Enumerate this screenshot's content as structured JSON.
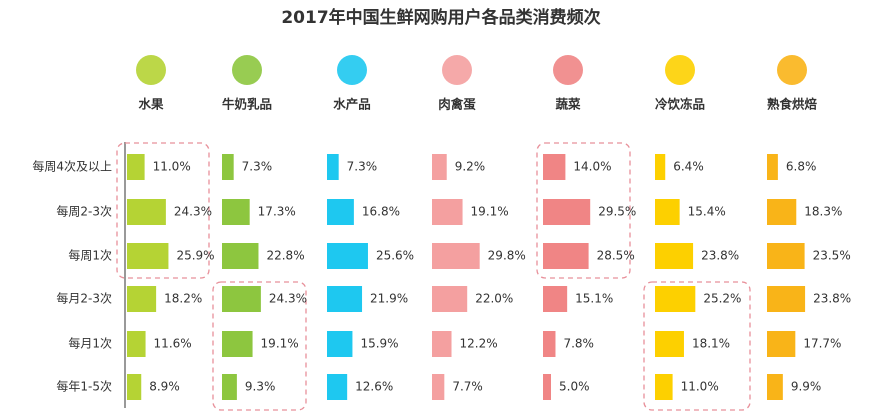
{
  "chart_data": {
    "type": "bar",
    "title": "2017年中国生鲜网购用户各品类消费频次",
    "categories": [
      "每周4次及以上",
      "每周2-3次",
      "每周1次",
      "每月2-3次",
      "每月1次",
      "每年1-5次"
    ],
    "series": [
      {
        "name": "水果",
        "color": "#b5d334",
        "values": [
          11.0,
          24.3,
          25.9,
          18.2,
          11.6,
          8.9
        ],
        "value_labels": [
          "11.0%",
          "24.3%",
          "25.9%",
          "18.2%",
          "11.6%",
          "8.9%"
        ]
      },
      {
        "name": "牛奶乳品",
        "color": "#8dc63f",
        "values": [
          7.3,
          17.3,
          22.8,
          24.3,
          19.1,
          9.3
        ],
        "value_labels": [
          "7.3%",
          "17.3%",
          "22.8%",
          "24.3%",
          "19.1%",
          "9.3%"
        ]
      },
      {
        "name": "水产品",
        "color": "#1ec8f0",
        "values": [
          7.3,
          16.8,
          25.6,
          21.9,
          15.9,
          12.6
        ],
        "value_labels": [
          "7.3%",
          "16.8%",
          "25.6%",
          "21.9%",
          "15.9%",
          "12.6%"
        ]
      },
      {
        "name": "肉禽蛋",
        "color": "#f4a0a0",
        "values": [
          9.2,
          19.1,
          29.8,
          22.0,
          12.2,
          7.7
        ],
        "value_labels": [
          "9.2%",
          "19.1%",
          "29.8%",
          "22.0%",
          "12.2%",
          "7.7%"
        ]
      },
      {
        "name": "蔬菜",
        "color": "#f08585",
        "values": [
          14.0,
          29.5,
          28.5,
          15.1,
          7.8,
          5.0
        ],
        "value_labels": [
          "14.0%",
          "29.5%",
          "28.5%",
          "15.1%",
          "7.8%",
          "5.0%"
        ]
      },
      {
        "name": "冷饮冻品",
        "color": "#fdd000",
        "values": [
          6.4,
          15.4,
          23.8,
          25.2,
          18.1,
          11.0
        ],
        "value_labels": [
          "6.4%",
          "15.4%",
          "23.8%",
          "25.2%",
          "18.1%",
          "11.0%"
        ]
      },
      {
        "name": "熟食烘焙",
        "color": "#f9b418",
        "values": [
          6.8,
          18.3,
          23.5,
          23.8,
          17.7,
          9.9
        ],
        "value_labels": [
          "6.8%",
          "18.3%",
          "23.5%",
          "23.8%",
          "17.7%",
          "9.9%"
        ]
      }
    ]
  }
}
